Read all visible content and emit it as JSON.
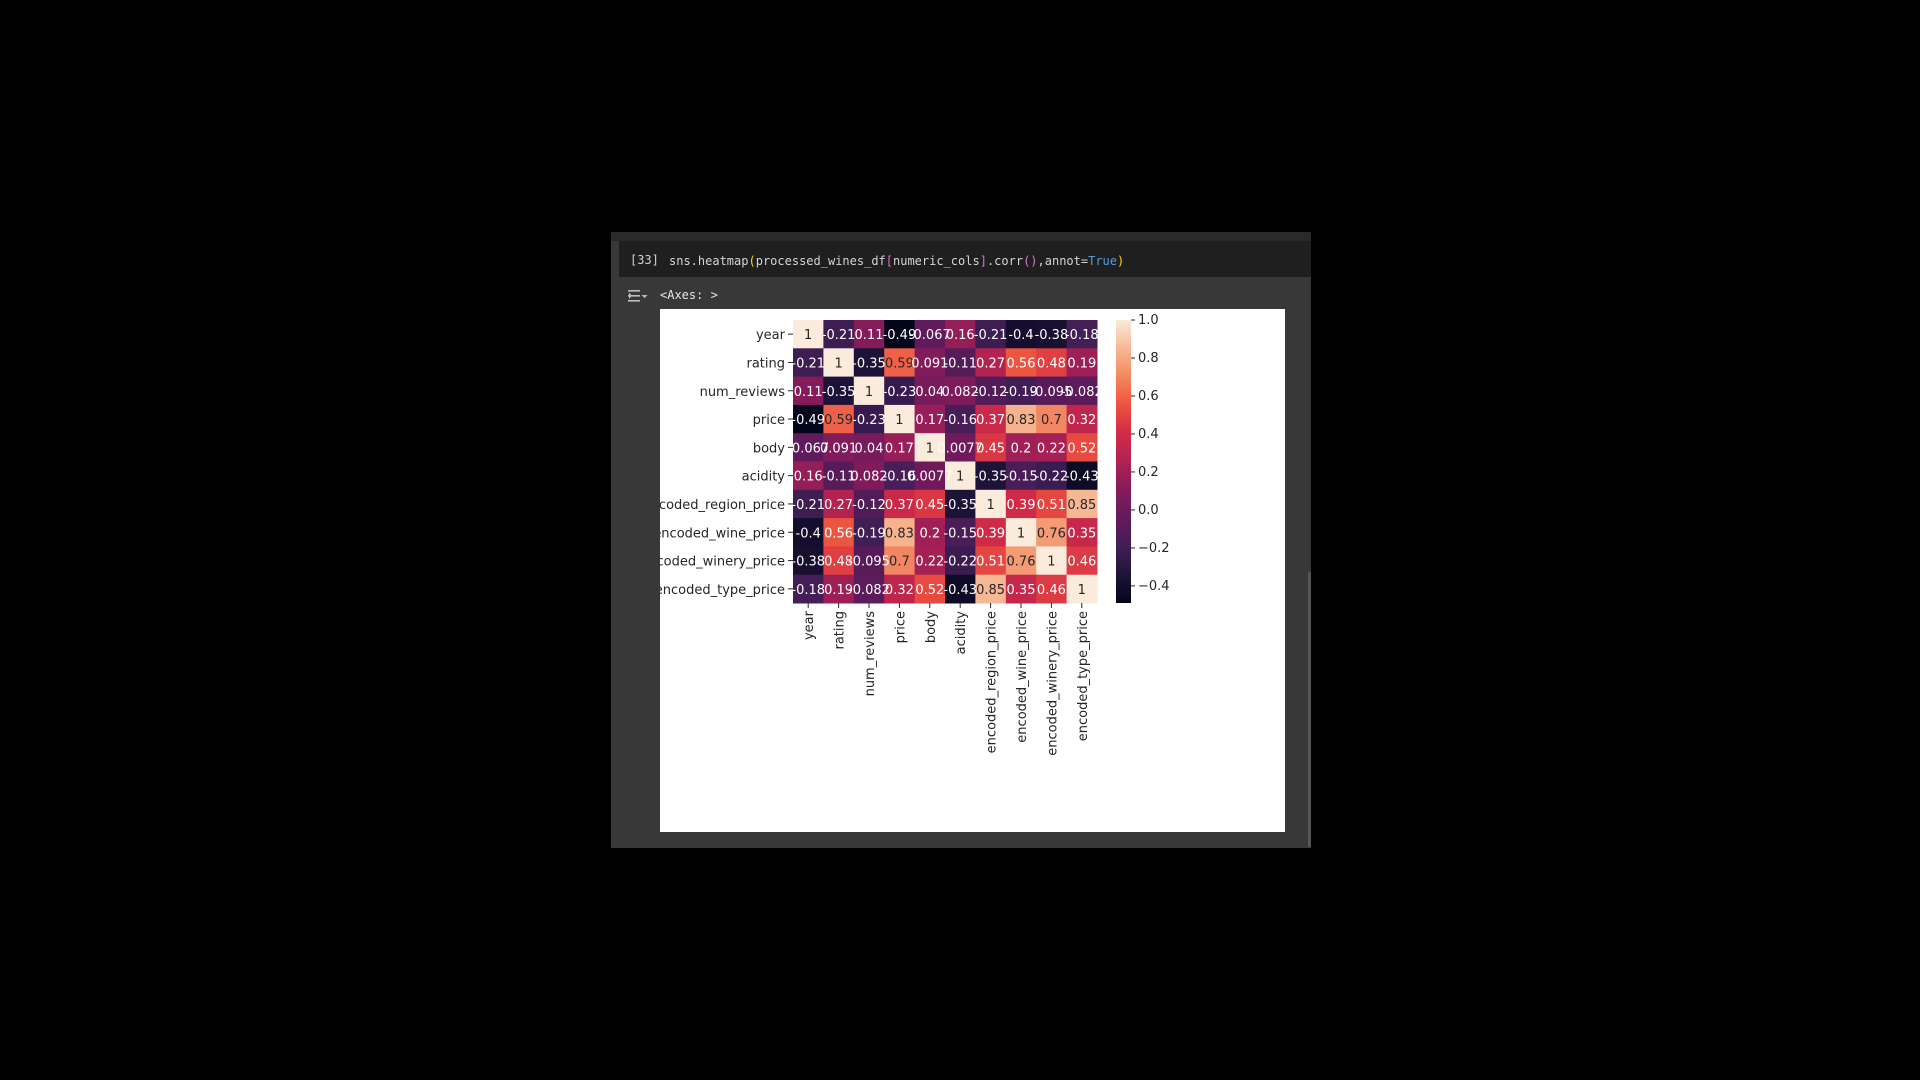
{
  "cell": {
    "execution_count": "[33]",
    "code_tokens": [
      {
        "text": "sns.heatmap",
        "color": "#d4d4d4"
      },
      {
        "text": "(",
        "color": "#ffd700"
      },
      {
        "text": "processed_wines_df",
        "color": "#d4d4d4"
      },
      {
        "text": "[",
        "color": "#da70d6"
      },
      {
        "text": "numeric_cols",
        "color": "#d4d4d4"
      },
      {
        "text": "]",
        "color": "#da70d6"
      },
      {
        "text": ".corr",
        "color": "#d4d4d4"
      },
      {
        "text": "()",
        "color": "#da70d6"
      },
      {
        "text": ",annot=",
        "color": "#d4d4d4"
      },
      {
        "text": "True",
        "color": "#569cd6"
      },
      {
        "text": ")",
        "color": "#ffd700"
      }
    ],
    "output_repr": "<Axes: >",
    "output_toggle_icon": "output-collapse-icon"
  },
  "chart_data": {
    "type": "heatmap",
    "row_labels": [
      "year",
      "rating",
      "num_reviews",
      "price",
      "body",
      "acidity",
      "encoded_region_price",
      "encoded_wine_price",
      "encoded_winery_price",
      "encoded_type_price"
    ],
    "col_labels": [
      "year",
      "rating",
      "num_reviews",
      "price",
      "body",
      "acidity",
      "encoded_region_price",
      "encoded_wine_price",
      "encoded_winery_price",
      "encoded_type_price"
    ],
    "values": [
      [
        1,
        -0.21,
        0.11,
        -0.49,
        -0.067,
        0.16,
        -0.21,
        -0.4,
        -0.38,
        -0.18
      ],
      [
        -0.21,
        1,
        -0.35,
        0.59,
        0.091,
        -0.11,
        0.27,
        0.56,
        0.48,
        0.19
      ],
      [
        0.11,
        -0.35,
        1,
        -0.23,
        0.04,
        0.082,
        -0.12,
        -0.19,
        -0.095,
        -0.082
      ],
      [
        -0.49,
        0.59,
        -0.23,
        1,
        0.17,
        -0.16,
        0.37,
        0.83,
        0.7,
        0.32
      ],
      [
        -0.067,
        0.091,
        0.04,
        0.17,
        1,
        0.0077,
        0.45,
        0.2,
        0.22,
        0.52
      ],
      [
        0.16,
        -0.11,
        0.082,
        -0.16,
        0.0077,
        1,
        -0.35,
        -0.15,
        -0.22,
        -0.43
      ],
      [
        -0.21,
        0.27,
        -0.12,
        0.37,
        0.45,
        -0.35,
        1,
        0.39,
        0.51,
        0.85
      ],
      [
        -0.4,
        0.56,
        -0.19,
        0.83,
        0.2,
        -0.15,
        0.39,
        1,
        0.76,
        0.35
      ],
      [
        -0.38,
        0.48,
        -0.095,
        0.7,
        0.22,
        -0.22,
        0.51,
        0.76,
        1,
        0.46
      ],
      [
        -0.18,
        0.19,
        -0.082,
        0.32,
        0.52,
        -0.43,
        0.85,
        0.35,
        0.46,
        1
      ]
    ],
    "colormap": "rocket",
    "vmin": -0.49,
    "vmax": 1.0,
    "colorbar_ticks": [
      1.0,
      0.8,
      0.6,
      0.4,
      0.2,
      0.0,
      -0.2,
      -0.4
    ],
    "colorbar_tick_labels": [
      "1.0",
      "0.8",
      "0.6",
      "0.4",
      "0.2",
      "0.0",
      "−0.2",
      "−0.4"
    ]
  }
}
